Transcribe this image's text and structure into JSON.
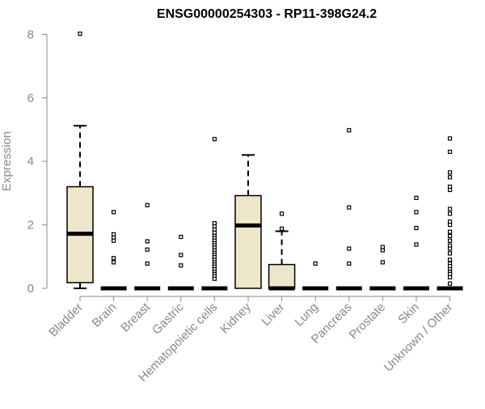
{
  "chart_data": {
    "type": "boxplot",
    "title": "ENSG00000254303 - RP11-398G24.2",
    "ylabel": "Expression",
    "xlabel": "",
    "ylim": [
      0,
      8.2
    ],
    "yticks": [
      "0",
      "2",
      "4",
      "6",
      "8"
    ],
    "grid": false,
    "box_fill": "#ede6ca",
    "box_stroke": "#000000",
    "axis_color": "#888888",
    "categories": [
      "Bladder",
      "Brain",
      "Breast",
      "Gastric",
      "Hematopoietic cells",
      "Kidney",
      "Liver",
      "Lung",
      "Pancreas",
      "Prostate",
      "Skin",
      "Unknown / Other"
    ],
    "series": [
      {
        "category": "Bladder",
        "whisker_low": 0.0,
        "q1": 0.18,
        "median": 1.72,
        "q3": 3.2,
        "whisker_high": 5.12,
        "outliers": [
          8.02
        ]
      },
      {
        "category": "Brain",
        "whisker_low": 0.0,
        "q1": 0.0,
        "median": 0.0,
        "q3": 0.0,
        "whisker_high": 0.0,
        "outliers": [
          2.4,
          1.7,
          1.6,
          1.5,
          0.95,
          0.82
        ]
      },
      {
        "category": "Breast",
        "whisker_low": 0.0,
        "q1": 0.0,
        "median": 0.0,
        "q3": 0.0,
        "whisker_high": 0.0,
        "outliers": [
          2.62,
          1.48,
          1.22,
          0.78
        ]
      },
      {
        "category": "Gastric",
        "whisker_low": 0.0,
        "q1": 0.0,
        "median": 0.0,
        "q3": 0.0,
        "whisker_high": 0.0,
        "outliers": [
          1.62,
          1.05,
          0.72
        ]
      },
      {
        "category": "Hematopoietic cells",
        "whisker_low": 0.0,
        "q1": 0.0,
        "median": 0.0,
        "q3": 0.0,
        "whisker_high": 0.0,
        "outliers": [
          4.7,
          2.05,
          1.95,
          1.85,
          1.75,
          1.65,
          1.58,
          1.5,
          1.42,
          1.35,
          1.28,
          1.2,
          1.12,
          1.05,
          0.98,
          0.9,
          0.82,
          0.75,
          0.68,
          0.6,
          0.52,
          0.45,
          0.38,
          0.3
        ]
      },
      {
        "category": "Kidney",
        "whisker_low": 0.0,
        "q1": 0.0,
        "median": 1.98,
        "q3": 2.92,
        "whisker_high": 4.2,
        "outliers": []
      },
      {
        "category": "Liver",
        "whisker_low": 0.0,
        "q1": 0.0,
        "median": 0.0,
        "q3": 0.75,
        "whisker_high": 1.8,
        "outliers": [
          2.35,
          1.88
        ]
      },
      {
        "category": "Lung",
        "whisker_low": 0.0,
        "q1": 0.0,
        "median": 0.0,
        "q3": 0.0,
        "whisker_high": 0.0,
        "outliers": [
          0.78
        ]
      },
      {
        "category": "Pancreas",
        "whisker_low": 0.0,
        "q1": 0.0,
        "median": 0.0,
        "q3": 0.0,
        "whisker_high": 0.0,
        "outliers": [
          4.98,
          2.55,
          1.25,
          0.78
        ]
      },
      {
        "category": "Prostate",
        "whisker_low": 0.0,
        "q1": 0.0,
        "median": 0.0,
        "q3": 0.0,
        "whisker_high": 0.0,
        "outliers": [
          1.3,
          1.2,
          0.82
        ]
      },
      {
        "category": "Skin",
        "whisker_low": 0.0,
        "q1": 0.0,
        "median": 0.0,
        "q3": 0.0,
        "whisker_high": 0.0,
        "outliers": [
          2.85,
          2.4,
          1.9,
          1.38
        ]
      },
      {
        "category": "Unknown / Other",
        "whisker_low": 0.0,
        "q1": 0.0,
        "median": 0.0,
        "q3": 0.0,
        "whisker_high": 0.0,
        "outliers": [
          4.72,
          4.3,
          3.65,
          3.5,
          3.2,
          3.1,
          2.5,
          2.35,
          2.1,
          2.0,
          1.78,
          1.65,
          1.5,
          1.35,
          1.25,
          1.1,
          0.9,
          0.78,
          0.7,
          0.6,
          0.52,
          0.45,
          0.35,
          0.15
        ]
      }
    ]
  }
}
